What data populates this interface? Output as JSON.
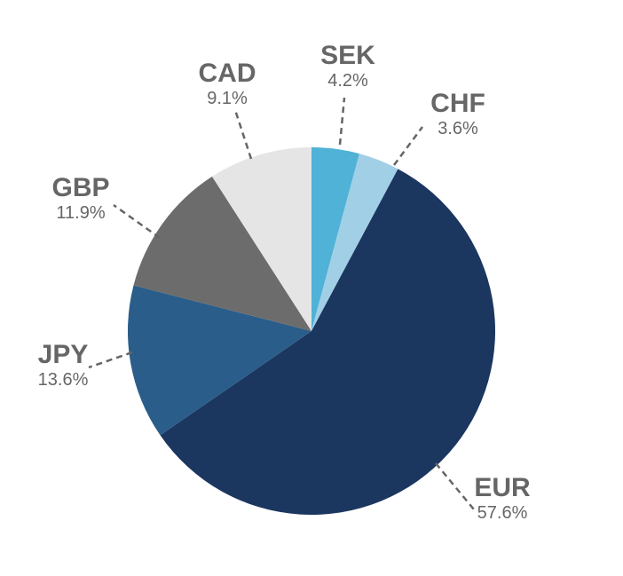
{
  "chart_data": {
    "type": "pie",
    "title": "",
    "start_angle_deg": 0,
    "direction": "clockwise",
    "slices": [
      {
        "label": "SEK",
        "value": 4.2,
        "value_label": "4.2%",
        "color": "#4fb2d6"
      },
      {
        "label": "CHF",
        "value": 3.6,
        "value_label": "3.6%",
        "color": "#a1cfe6"
      },
      {
        "label": "EUR",
        "value": 57.6,
        "value_label": "57.6%",
        "color": "#1b365f"
      },
      {
        "label": "JPY",
        "value": 13.6,
        "value_label": "13.6%",
        "color": "#2a5d8a"
      },
      {
        "label": "GBP",
        "value": 11.9,
        "value_label": "11.9%",
        "color": "#6c6c6c"
      },
      {
        "label": "CAD",
        "value": 9.1,
        "value_label": "9.1%",
        "color": "#e5e5e5"
      }
    ]
  }
}
